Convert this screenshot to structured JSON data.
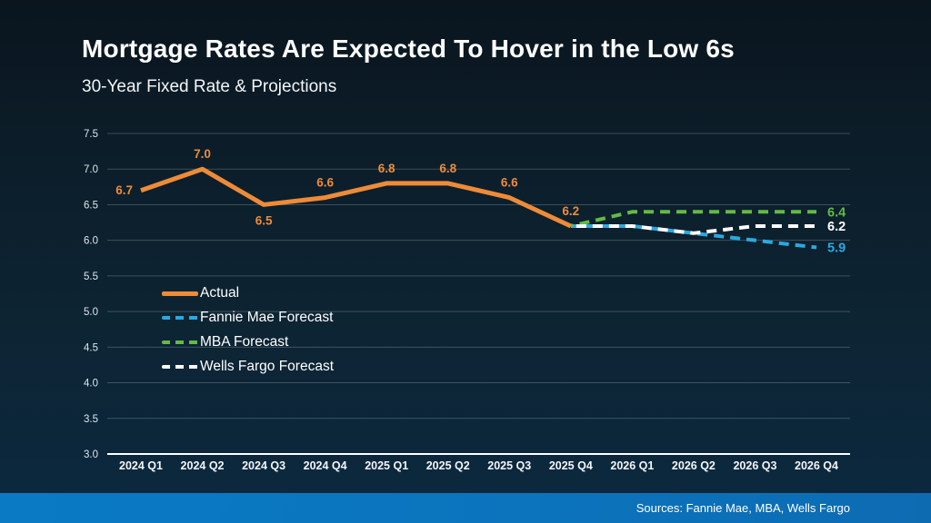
{
  "header": {
    "title": "Mortgage Rates Are Expected To Hover in the Low 6s",
    "subtitle": "30-Year Fixed Rate & Projections"
  },
  "footer": {
    "source_text": "Sources: Fannie Mae, MBA, Wells Fargo"
  },
  "colors": {
    "actual_orange": "#EE8B38",
    "fannie_mae_blue": "#29A9E1",
    "mba_green": "#63BA46",
    "wells_fargo_white": "#FFFFFF",
    "source_bar_blue": "#0A78C3",
    "grid_line": "rgba(190,205,215,0.28)",
    "axis_baseline": "#FFFFFF"
  },
  "chart_data": {
    "type": "line",
    "title": "Mortgage Rates Are Expected To Hover in the Low 6s",
    "subtitle": "30-Year Fixed Rate & Projections",
    "categories": [
      "2024 Q1",
      "2024 Q2",
      "2024 Q3",
      "2024 Q4",
      "2025 Q1",
      "2025 Q2",
      "2025 Q3",
      "2025 Q4",
      "2026 Q1",
      "2026 Q2",
      "2026 Q3",
      "2026 Q4"
    ],
    "ylabel": "",
    "xlabel": "",
    "ylim": [
      3.0,
      7.5
    ],
    "ytick_step": 0.5,
    "ytick_labels": [
      "3.0",
      "3.5",
      "4.0",
      "4.5",
      "5.0",
      "5.5",
      "6.0",
      "6.5",
      "7.0",
      "7.5"
    ],
    "grid": true,
    "legend_position": "inside-left",
    "series": [
      {
        "name": "Actual",
        "style": "solid",
        "color": "#EE8B38",
        "x_start_index": 0,
        "values": [
          6.7,
          7.0,
          6.5,
          6.6,
          6.8,
          6.8,
          6.6,
          6.2
        ],
        "data_labels": [
          "6.7",
          "7.0",
          "6.5",
          "6.6",
          "6.8",
          "6.8",
          "6.6",
          "6.2"
        ],
        "label_placements": [
          "left",
          "above",
          "below",
          "above",
          "above",
          "above",
          "above",
          "above"
        ]
      },
      {
        "name": "Fannie Mae Forecast",
        "style": "dashed",
        "color": "#29A9E1",
        "x_start_index": 7,
        "values": [
          6.2,
          6.2,
          6.1,
          6.0,
          5.9
        ],
        "end_label": "5.9"
      },
      {
        "name": "MBA Forecast",
        "style": "dashed",
        "color": "#63BA46",
        "x_start_index": 7,
        "values": [
          6.2,
          6.4,
          6.4,
          6.4,
          6.4
        ],
        "end_label": "6.4"
      },
      {
        "name": "Wells Fargo Forecast",
        "style": "dashed",
        "color": "#FFFFFF",
        "x_start_index": 7,
        "values": [
          6.2,
          6.2,
          6.1,
          6.2,
          6.2
        ],
        "end_label": "6.2"
      }
    ]
  }
}
